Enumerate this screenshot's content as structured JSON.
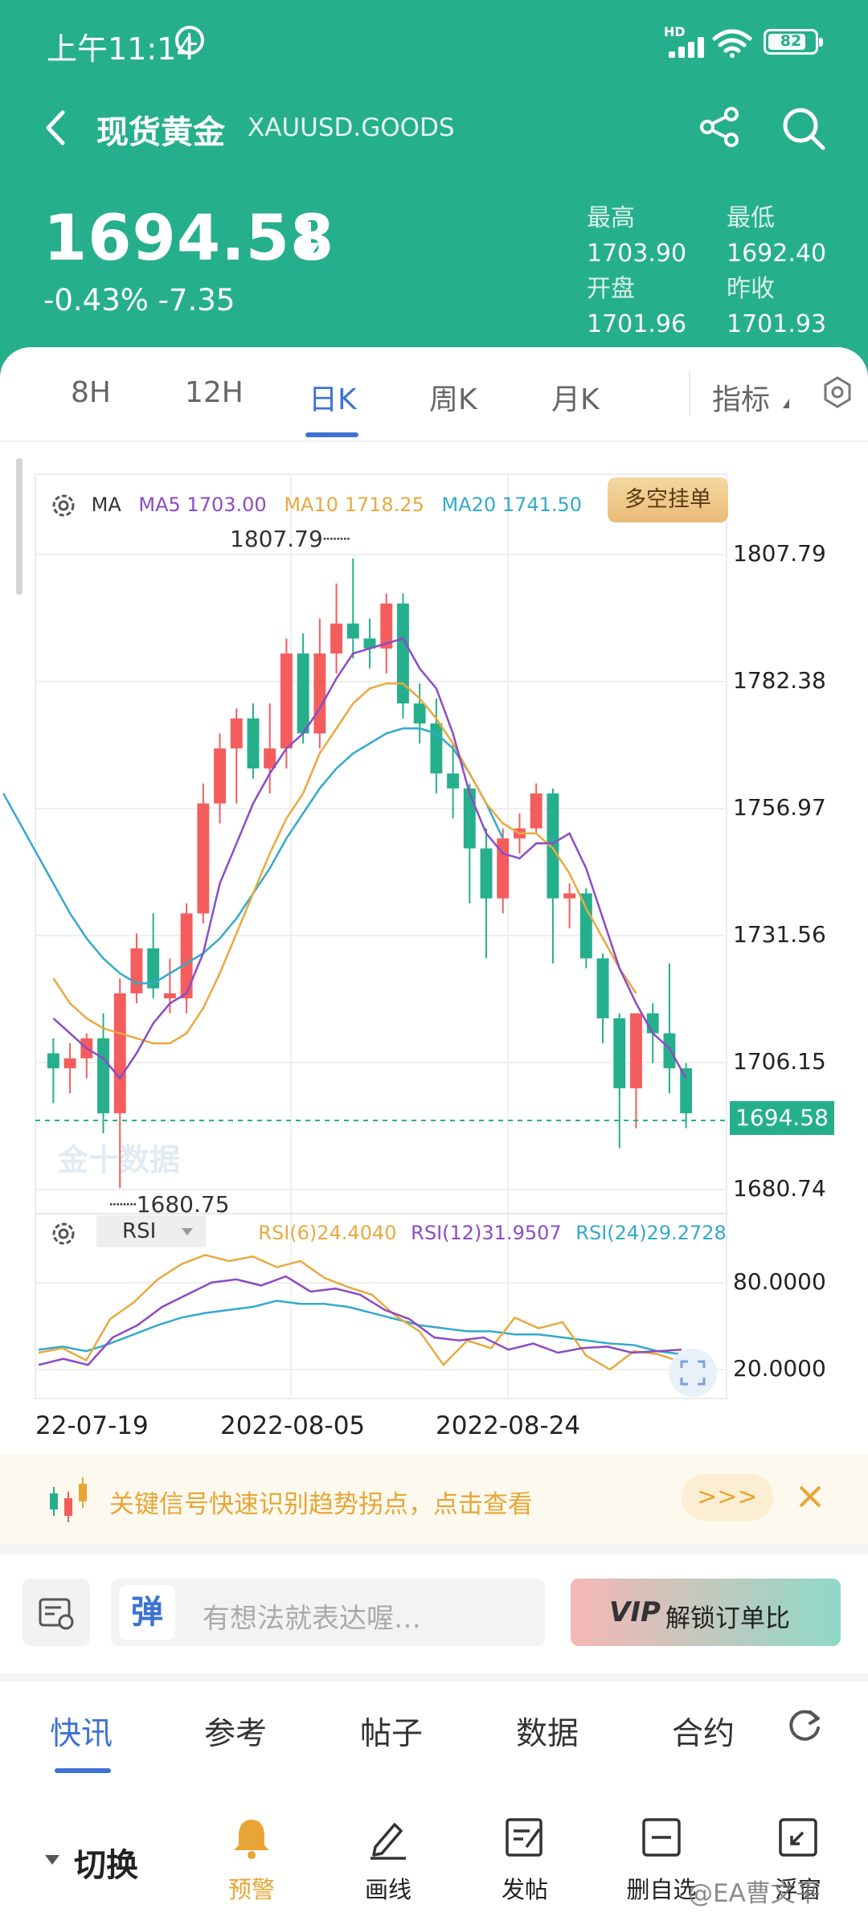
{
  "status_bar": {
    "time": "上午11:14",
    "network": "HD",
    "battery": "82",
    "battery_level": 0.82
  },
  "header": {
    "title": "现货黄金",
    "symbol": "XAUUSD.GOODS"
  },
  "quote": {
    "price": "1694.58",
    "change": "-0.43% -7.35",
    "stats": [
      {
        "label": "最高",
        "value": "1703.90"
      },
      {
        "label": "最低",
        "value": "1692.40"
      },
      {
        "label": "开盘",
        "value": "1701.96"
      },
      {
        "label": "昨收",
        "value": "1701.93"
      }
    ]
  },
  "period_tabs": [
    "8H",
    "12H",
    "日K",
    "周K",
    "月K"
  ],
  "period_active": "日K",
  "indicator_label": "指标",
  "ma_legend": {
    "ma": "MA",
    "ma5": "MA5 1703.00",
    "ma10": "MA10 1718.25",
    "ma20": "MA20 1741.50"
  },
  "duokong_button": "多空挂单",
  "rsi_legend": {
    "name": "RSI",
    "rsi6": "RSI(6)24.4040",
    "rsi12": "RSI(12)31.9507",
    "rsi24": "RSI(24)29.2728"
  },
  "chart_data": {
    "type": "candlestick",
    "watermark_text": "金十数据",
    "y_ticks": [
      "1807.79",
      "1782.38",
      "1756.97",
      "1731.56",
      "1706.15",
      "1680.74"
    ],
    "ylim": [
      1680.74,
      1807.79
    ],
    "high_marker": "1807.79",
    "low_marker": "1680.75",
    "last_price": "1694.58",
    "last_value": 1694.58,
    "x_labels": [
      "22-07-19",
      "2022-08-05",
      "2022-08-24"
    ],
    "colors": {
      "up": "#f45d5d",
      "down": "#26af8c",
      "ma5": "#8c4bc4",
      "ma10": "#e9a93f",
      "ma20": "#33aacc"
    },
    "candles": [
      [
        1708,
        1711,
        1698,
        1705
      ],
      [
        1705,
        1710,
        1700,
        1707
      ],
      [
        1707,
        1712,
        1703,
        1711
      ],
      [
        1711,
        1716,
        1692,
        1696
      ],
      [
        1696,
        1723,
        1681,
        1720
      ],
      [
        1720,
        1732,
        1718,
        1729
      ],
      [
        1729,
        1736,
        1719,
        1721
      ],
      [
        1719,
        1727,
        1716,
        1720
      ],
      [
        1719,
        1738,
        1716,
        1736
      ],
      [
        1736,
        1762,
        1734,
        1758
      ],
      [
        1758,
        1772,
        1754,
        1769
      ],
      [
        1769,
        1777,
        1758,
        1775
      ],
      [
        1775,
        1778,
        1763,
        1765
      ],
      [
        1765,
        1778,
        1760,
        1769
      ],
      [
        1769,
        1791,
        1765,
        1788
      ],
      [
        1788,
        1792,
        1770,
        1772
      ],
      [
        1772,
        1795,
        1769,
        1788
      ],
      [
        1788,
        1802,
        1784,
        1794
      ],
      [
        1794,
        1807,
        1787,
        1791
      ],
      [
        1791,
        1795,
        1785,
        1789
      ],
      [
        1789,
        1800,
        1784,
        1798
      ],
      [
        1798,
        1800,
        1775,
        1778
      ],
      [
        1778,
        1782,
        1770,
        1774
      ],
      [
        1774,
        1779,
        1760,
        1764
      ],
      [
        1764,
        1770,
        1755,
        1761
      ],
      [
        1761,
        1762,
        1738,
        1749
      ],
      [
        1749,
        1753,
        1727,
        1739
      ],
      [
        1739,
        1753,
        1736,
        1751
      ],
      [
        1751,
        1756,
        1748,
        1753
      ],
      [
        1753,
        1762,
        1752,
        1760
      ],
      [
        1760,
        1761,
        1726,
        1739
      ],
      [
        1739,
        1742,
        1733,
        1740
      ],
      [
        1740,
        1741,
        1725,
        1727
      ],
      [
        1727,
        1728,
        1710,
        1715
      ],
      [
        1715,
        1716,
        1689,
        1701
      ],
      [
        1701,
        1716,
        1693,
        1716
      ],
      [
        1716,
        1718,
        1706,
        1712
      ],
      [
        1712,
        1726,
        1700,
        1705
      ],
      [
        1705,
        1706,
        1693,
        1696
      ]
    ],
    "ma5": [
      1715,
      1712,
      1709,
      1707,
      1703,
      1708,
      1714,
      1718,
      1720,
      1728,
      1742,
      1750,
      1758,
      1764,
      1769,
      1772,
      1777,
      1783,
      1788,
      1789,
      1790,
      1791,
      1785,
      1781,
      1772,
      1760,
      1752,
      1748,
      1747,
      1750,
      1750,
      1752,
      1745,
      1735,
      1725,
      1718,
      1712,
      1709,
      1703
    ],
    "ma10": [
      1723,
      1718,
      1715,
      1713,
      1712,
      1711,
      1710,
      1710,
      1712,
      1717,
      1724,
      1732,
      1740,
      1748,
      1755,
      1760,
      1768,
      1773,
      1778,
      1781,
      1782,
      1782,
      1779,
      1775,
      1770,
      1764,
      1758,
      1754,
      1752,
      1752,
      1749,
      1744,
      1737,
      1731,
      1725,
      1720
    ],
    "ma20": [
      1760,
      1754,
      1748,
      1742,
      1736,
      1731,
      1727,
      1724,
      1722,
      1722,
      1724,
      1726,
      1728,
      1731,
      1735,
      1740,
      1745,
      1751,
      1756,
      1761,
      1765,
      1768,
      1770,
      1772,
      1773,
      1773,
      1772,
      1769,
      1764,
      1758,
      1751
    ],
    "rsi_ticks": [
      "80.0000",
      "20.0000"
    ],
    "rsi6": [
      30,
      33,
      25,
      52,
      63,
      78,
      88,
      94,
      90,
      93,
      86,
      90,
      79,
      73,
      68,
      54,
      44,
      22,
      38,
      33,
      53,
      46,
      50,
      28,
      19,
      31,
      29,
      24
    ],
    "rsi12": [
      22,
      26,
      22,
      40,
      48,
      60,
      68,
      76,
      78,
      74,
      80,
      70,
      72,
      68,
      58,
      52,
      40,
      38,
      40,
      32,
      36,
      30,
      33,
      34,
      30,
      31,
      32
    ],
    "rsi24": [
      32,
      34,
      31,
      36,
      42,
      48,
      53,
      56,
      58,
      60,
      64,
      62,
      62,
      60,
      56,
      52,
      48,
      46,
      44,
      44,
      42,
      42,
      40,
      38,
      36,
      35,
      31,
      29
    ]
  },
  "banner": {
    "text": "关键信号快速识别趋势拐点，点击查看",
    "more": ">>>"
  },
  "compose": {
    "placeholder": "有想法就表达喔…",
    "logo": "弹",
    "vip_logo": "VIP",
    "vip_text": "解锁订单比"
  },
  "news_tabs": [
    "快讯",
    "参考",
    "帖子",
    "数据",
    "合约"
  ],
  "news_active": "快讯",
  "bottom": {
    "switch": "切换",
    "tools": [
      {
        "label": "预警",
        "icon": "bell-icon"
      },
      {
        "label": "画线",
        "icon": "pen-icon"
      },
      {
        "label": "发帖",
        "icon": "post-icon"
      },
      {
        "label": "删自选",
        "icon": "minus-square-icon"
      },
      {
        "label": "浮窗",
        "icon": "float-window-icon"
      }
    ],
    "watermark": "@EA曹文平"
  }
}
